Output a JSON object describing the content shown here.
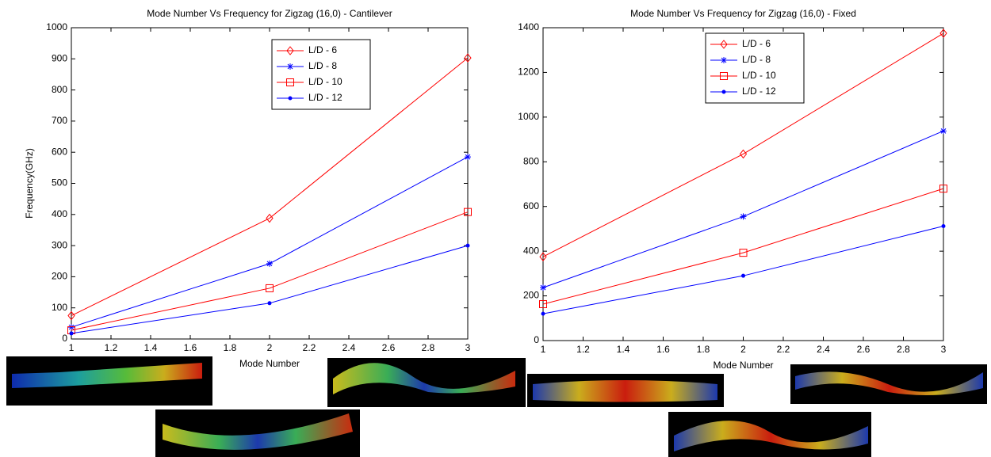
{
  "chart_data": [
    {
      "type": "line",
      "title": "Mode Number Vs Frequency for Zigzag (16,0) - Cantilever",
      "x_label": "Mode Number",
      "y_label": "Frequency(GHz)",
      "x": [
        1,
        2,
        3
      ],
      "xlim": [
        1,
        3
      ],
      "xticks": [
        1,
        1.2,
        1.4,
        1.6,
        1.8,
        2,
        2.2,
        2.4,
        2.6,
        2.8,
        3
      ],
      "ylim": [
        0,
        1000
      ],
      "yticks": [
        0,
        100,
        200,
        300,
        400,
        500,
        600,
        700,
        800,
        900,
        1000
      ],
      "series": [
        {
          "name": "L/D - 6",
          "color": "#ff0000",
          "marker": "diamond",
          "values": [
            75,
            388,
            903
          ]
        },
        {
          "name": "L/D - 8",
          "color": "#0000ff",
          "marker": "star",
          "values": [
            38,
            242,
            585
          ]
        },
        {
          "name": "L/D - 10",
          "color": "#ff0000",
          "marker": "square",
          "values": [
            28,
            163,
            408
          ]
        },
        {
          "name": "L/D - 12",
          "color": "#0000ff",
          "marker": "dot",
          "values": [
            18,
            115,
            300
          ]
        }
      ]
    },
    {
      "type": "line",
      "title": "Mode Number Vs Frequency for Zigzag (16,0) - Fixed",
      "x_label": "Mode Number",
      "x": [
        1,
        2,
        3
      ],
      "xlim": [
        1,
        3
      ],
      "xticks": [
        1,
        1.2,
        1.4,
        1.6,
        1.8,
        2,
        2.2,
        2.4,
        2.6,
        2.8,
        3
      ],
      "ylim": [
        0,
        1400
      ],
      "yticks": [
        0,
        200,
        400,
        600,
        800,
        1000,
        1200,
        1400
      ],
      "series": [
        {
          "name": "L/D - 6",
          "color": "#ff0000",
          "marker": "diamond",
          "values": [
            375,
            835,
            1375
          ]
        },
        {
          "name": "L/D - 8",
          "color": "#0000ff",
          "marker": "star",
          "values": [
            237,
            555,
            938
          ]
        },
        {
          "name": "L/D - 10",
          "color": "#ff0000",
          "marker": "square",
          "values": [
            163,
            393,
            680
          ]
        },
        {
          "name": "L/D - 12",
          "color": "#0000ff",
          "marker": "dot",
          "values": [
            120,
            290,
            512
          ]
        }
      ]
    }
  ]
}
